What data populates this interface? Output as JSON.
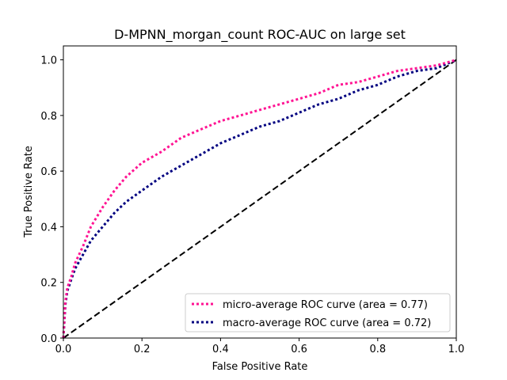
{
  "chart_data": {
    "type": "line",
    "title": "D-MPNN_morgan_count ROC-AUC on large set",
    "xlabel": "False Positive Rate",
    "ylabel": "True Positive Rate",
    "xlim": [
      0.0,
      1.0
    ],
    "ylim": [
      0.0,
      1.05
    ],
    "xticks": [
      "0.0",
      "0.2",
      "0.4",
      "0.6",
      "0.8",
      "1.0"
    ],
    "yticks": [
      "0.0",
      "0.2",
      "0.4",
      "0.6",
      "0.8",
      "1.0"
    ],
    "grid": false,
    "legend_position": "lower-right",
    "series": [
      {
        "name": "micro-average ROC curve (area = 0.77)",
        "color": "#ff1493",
        "style": "dotted",
        "x": [
          0.0,
          0.005,
          0.01,
          0.02,
          0.03,
          0.05,
          0.07,
          0.1,
          0.13,
          0.16,
          0.2,
          0.25,
          0.3,
          0.35,
          0.4,
          0.45,
          0.5,
          0.55,
          0.6,
          0.65,
          0.7,
          0.75,
          0.8,
          0.85,
          0.9,
          0.95,
          1.0
        ],
        "y": [
          0.0,
          0.13,
          0.18,
          0.22,
          0.27,
          0.33,
          0.4,
          0.47,
          0.53,
          0.58,
          0.63,
          0.67,
          0.72,
          0.75,
          0.78,
          0.8,
          0.82,
          0.84,
          0.86,
          0.88,
          0.91,
          0.92,
          0.94,
          0.96,
          0.97,
          0.98,
          1.0
        ]
      },
      {
        "name": "macro-average ROC curve (area = 0.72)",
        "color": "#000080",
        "style": "dotted",
        "x": [
          0.0,
          0.005,
          0.01,
          0.02,
          0.03,
          0.05,
          0.07,
          0.1,
          0.13,
          0.16,
          0.2,
          0.25,
          0.3,
          0.35,
          0.4,
          0.45,
          0.5,
          0.55,
          0.6,
          0.65,
          0.7,
          0.75,
          0.8,
          0.85,
          0.9,
          0.95,
          1.0
        ],
        "y": [
          0.0,
          0.12,
          0.17,
          0.21,
          0.25,
          0.3,
          0.35,
          0.4,
          0.45,
          0.49,
          0.53,
          0.58,
          0.62,
          0.66,
          0.7,
          0.73,
          0.76,
          0.78,
          0.81,
          0.84,
          0.86,
          0.89,
          0.91,
          0.94,
          0.96,
          0.97,
          1.0
        ]
      },
      {
        "name": "",
        "color": "#000000",
        "style": "dashed",
        "x": [
          0.0,
          1.0
        ],
        "y": [
          0.0,
          1.0
        ]
      }
    ]
  }
}
